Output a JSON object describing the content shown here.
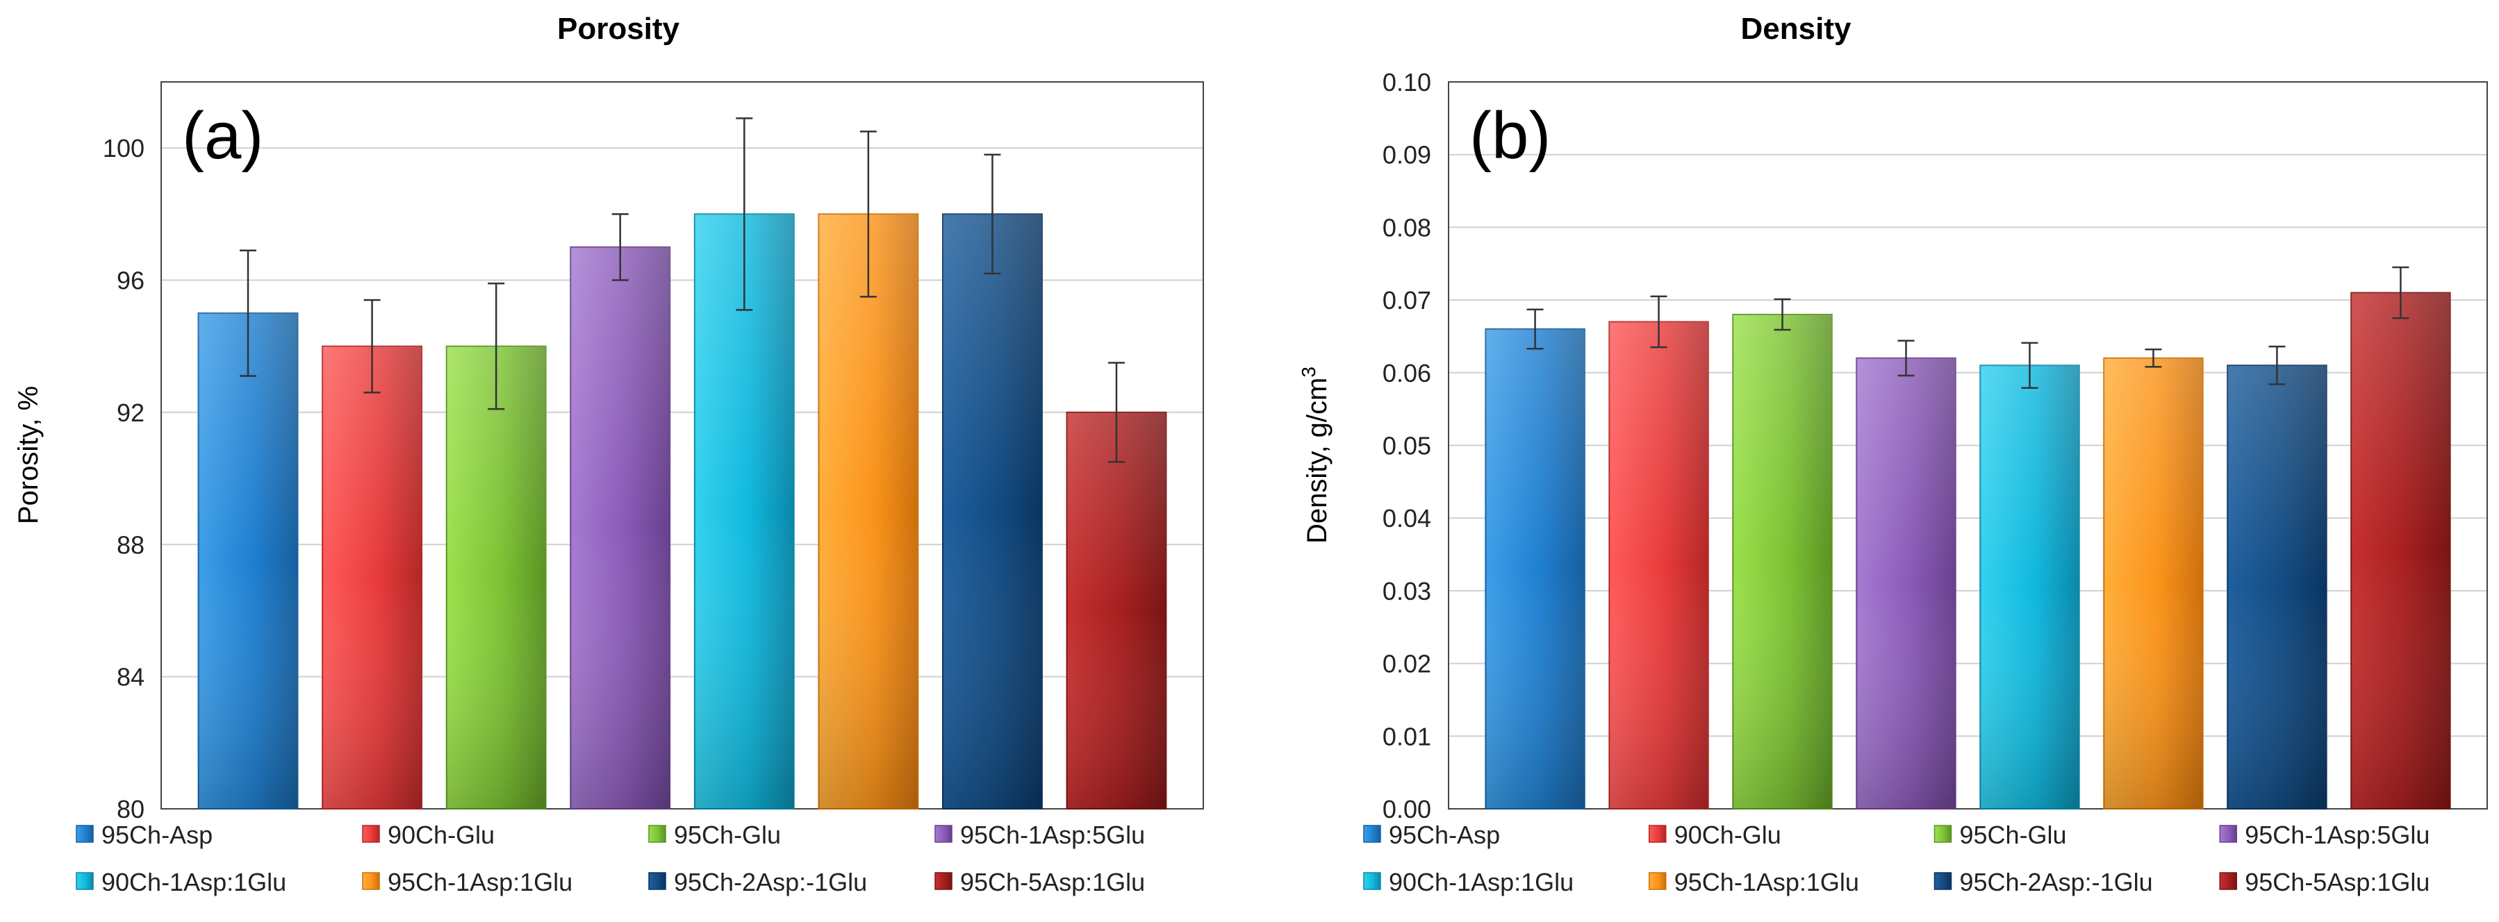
{
  "chart_data": [
    {
      "type": "bar",
      "panel_label": "(a)",
      "title": "Porosity",
      "xlabel": "",
      "ylabel": "Porosity, %",
      "ylim": [
        80,
        102
      ],
      "yticks": [
        "80",
        "84",
        "88",
        "92",
        "96",
        "100"
      ],
      "ytick_values": [
        80,
        84,
        88,
        92,
        96,
        100
      ],
      "grid": true,
      "categories": [
        "95Ch-Asp",
        "90Ch-Glu",
        "95Ch-Glu",
        "95Ch-1Asp:5Glu",
        "90Ch-1Asp:1Glu",
        "95Ch-1Asp:1Glu",
        "95Ch-2Asp:-1Glu",
        "95Ch-5Asp:1Glu"
      ],
      "values": [
        95,
        94,
        94,
        97,
        98,
        98,
        98,
        92
      ],
      "errors": [
        1.9,
        1.4,
        1.9,
        1.0,
        2.9,
        2.5,
        1.8,
        1.5
      ],
      "legend_position": "bottom"
    },
    {
      "type": "bar",
      "panel_label": "(b)",
      "title": "Density",
      "xlabel": "",
      "ylabel": "Density, g/cm",
      "ylabel_sup": "3",
      "ylim": [
        0,
        0.1
      ],
      "yticks": [
        "0.00",
        "0.01",
        "0.02",
        "0.03",
        "0.04",
        "0.05",
        "0.06",
        "0.07",
        "0.08",
        "0.09",
        "0.10"
      ],
      "ytick_values": [
        0,
        0.01,
        0.02,
        0.03,
        0.04,
        0.05,
        0.06,
        0.07,
        0.08,
        0.09,
        0.1
      ],
      "grid": true,
      "categories": [
        "95Ch-Asp",
        "90Ch-Glu",
        "95Ch-Glu",
        "95Ch-1Asp:5Glu",
        "90Ch-1Asp:1Glu",
        "95Ch-1Asp:1Glu",
        "95Ch-2Asp:-1Glu",
        "95Ch-5Asp:1Glu"
      ],
      "values": [
        0.066,
        0.067,
        0.068,
        0.062,
        0.061,
        0.062,
        0.061,
        0.071
      ],
      "errors": [
        0.0027,
        0.0035,
        0.0021,
        0.0024,
        0.0031,
        0.0012,
        0.0026,
        0.0035
      ],
      "legend_position": "bottom"
    }
  ],
  "colors": {
    "series": [
      {
        "top": "#3d9ee8",
        "mid": "#1f7fd0",
        "dark": "#165f9e"
      },
      {
        "top": "#ff5a5a",
        "mid": "#e83b3b",
        "dark": "#b32626"
      },
      {
        "top": "#9be04c",
        "mid": "#7cc233",
        "dark": "#5a9322"
      },
      {
        "top": "#a57ad1",
        "mid": "#8a5ab8",
        "dark": "#67408c"
      },
      {
        "top": "#33d1ee",
        "mid": "#10b8de",
        "dark": "#0a87a8"
      },
      {
        "top": "#ffae3a",
        "mid": "#fb931a",
        "dark": "#cc6f0a"
      },
      {
        "top": "#1f5f9e",
        "mid": "#124b82",
        "dark": "#0a3460"
      },
      {
        "top": "#c73030",
        "mid": "#a61f1f",
        "dark": "#7a1414"
      }
    ]
  }
}
